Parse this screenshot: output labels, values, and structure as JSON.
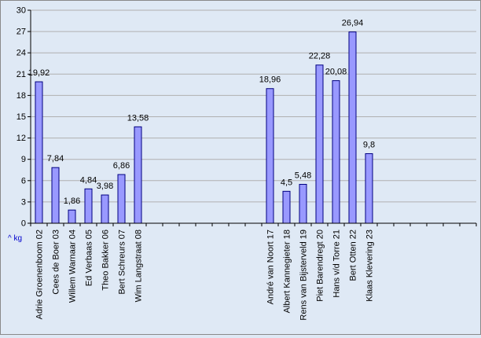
{
  "chart_data": {
    "type": "bar",
    "ylim": [
      0,
      30
    ],
    "ytick_step": 3,
    "y_ticks": [
      "0",
      "3",
      "6",
      "9",
      "12",
      "15",
      "18",
      "21",
      "24",
      "27",
      "30"
    ],
    "units_label": "^ kg",
    "slots": 27,
    "grid": true,
    "colors": {
      "bar": "#9999ff",
      "bar_stroke": "#000080",
      "grid": "#b0b0b0",
      "axis": "#000000",
      "background": "#dfe9f5"
    },
    "categories": [
      "Adrie Groenenboom 02",
      "Cees de Boer 03",
      "Willem Warnaar 04",
      "Ed Verbaas 05",
      "Theo Bakker 06",
      "Bert Schreurs 07",
      "Wim Langstraat 08",
      "",
      "",
      "",
      "",
      "",
      "",
      "",
      "André van Noort 17",
      "Albert Kannegieter 18",
      "Rens van Bijsterveld 19",
      "Piet Barendregt 20",
      "Hans v/d Torre 21",
      "Bert Otten 22",
      "Klaas Klevering 23",
      "",
      "",
      "",
      "",
      "",
      ""
    ],
    "values": [
      19.92,
      7.84,
      1.86,
      4.84,
      3.98,
      6.86,
      13.58,
      null,
      null,
      null,
      null,
      null,
      null,
      null,
      18.96,
      4.5,
      5.48,
      22.28,
      20.08,
      26.94,
      9.8,
      null,
      null,
      null,
      null,
      null,
      null
    ],
    "data_labels": [
      "19,92",
      "7,84",
      "1,86",
      "4,84",
      "3,98",
      "6,86",
      "13,58",
      "",
      "",
      "",
      "",
      "",
      "",
      "",
      "18,96",
      "4,5",
      "5,48",
      "22,28",
      "20,08",
      "26,94",
      "9,8",
      "",
      "",
      "",
      "",
      "",
      ""
    ]
  }
}
